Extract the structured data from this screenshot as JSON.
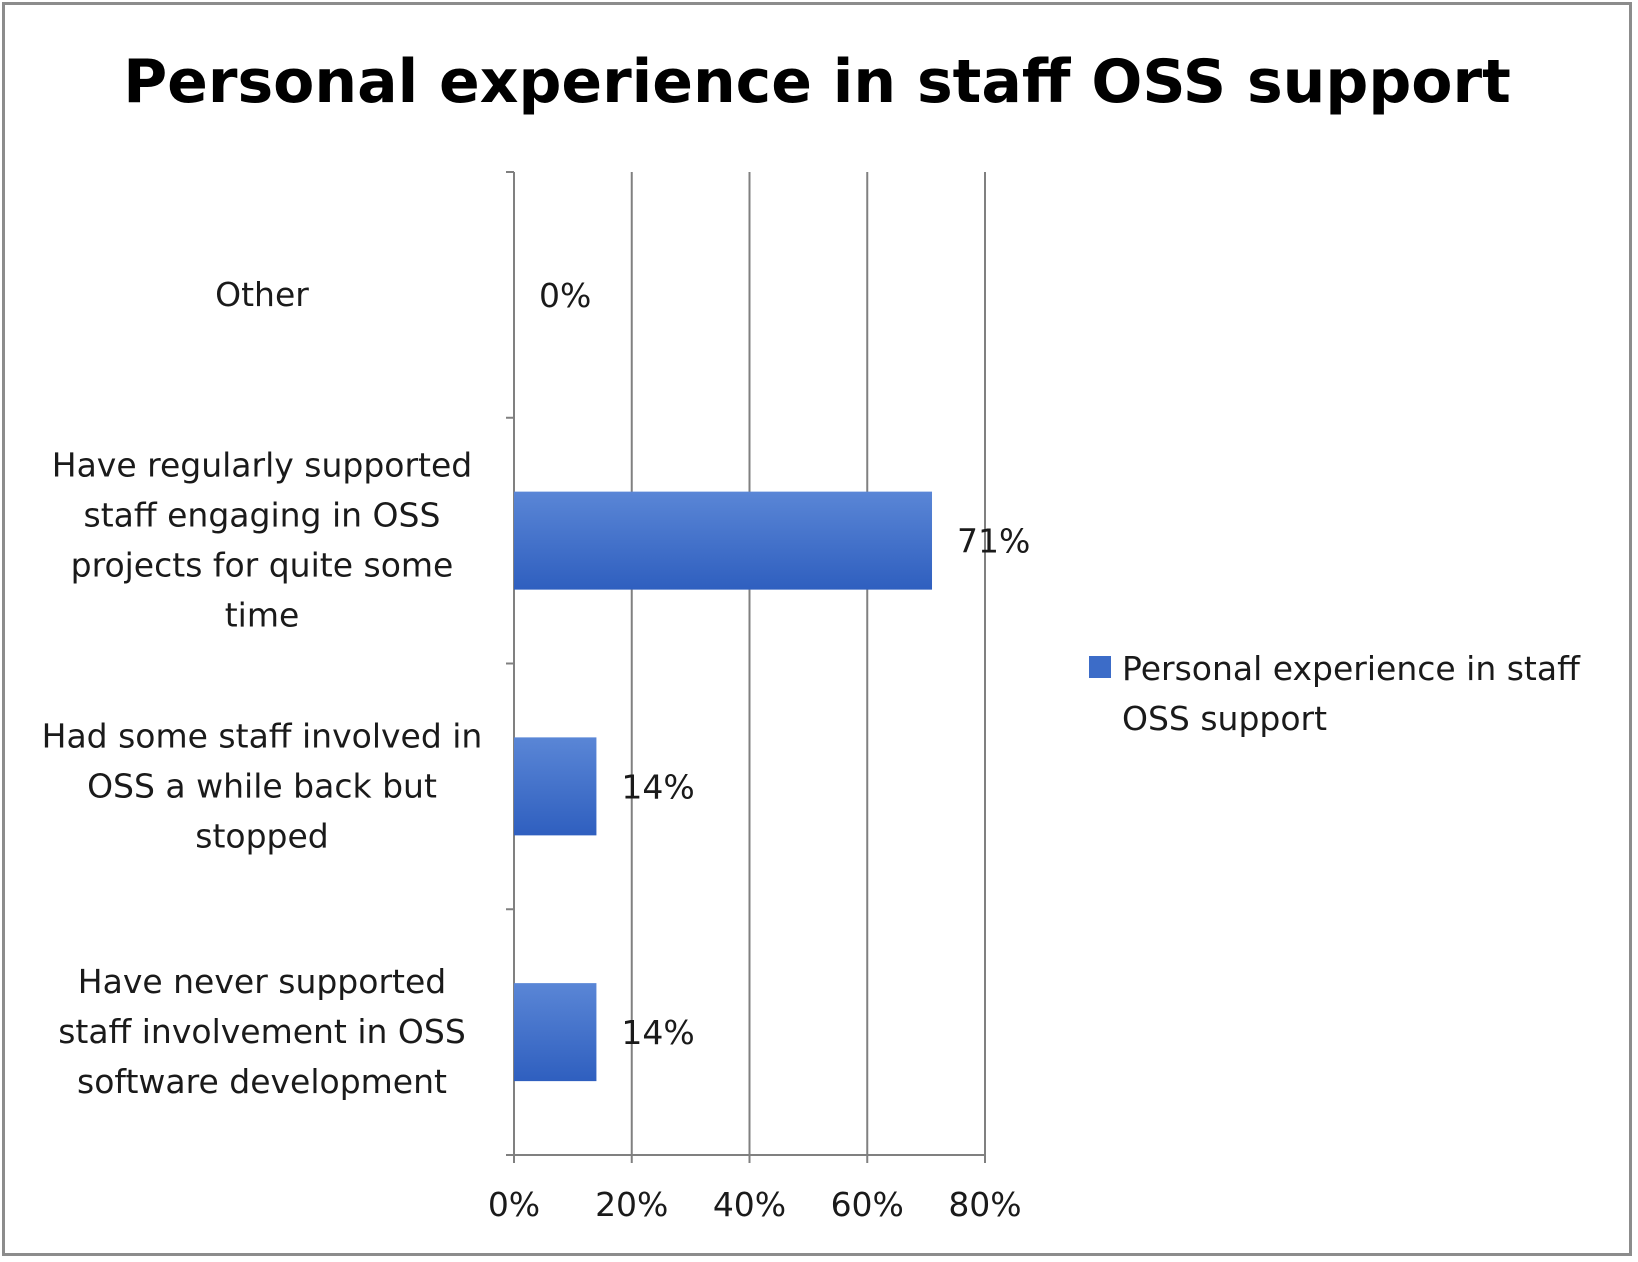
{
  "chart_data": {
    "type": "bar",
    "orientation": "horizontal",
    "title": "Personal experience in staff OSS support",
    "categories": [
      [
        "Other"
      ],
      [
        "Have regularly supported",
        "staff engaging in OSS",
        "projects for quite some",
        "time"
      ],
      [
        "Had some staff involved in",
        "OSS a while back but",
        "stopped"
      ],
      [
        "Have never supported",
        "staff involvement in OSS",
        "software development"
      ]
    ],
    "series": [
      {
        "name": "Personal experience in staff OSS support",
        "values": [
          0,
          71,
          14,
          14
        ],
        "labels": [
          "0%",
          "71%",
          "14%",
          "14%"
        ],
        "color": "#3c6cc8"
      }
    ],
    "xlim": [
      0,
      80
    ],
    "xticks": [
      0,
      20,
      40,
      60,
      80
    ],
    "xtick_labels": [
      "0%",
      "20%",
      "40%",
      "60%",
      "80%"
    ],
    "grid": "vertical",
    "legend_position": "right",
    "legend_lines": [
      "Personal experience in staff",
      "OSS support"
    ]
  }
}
